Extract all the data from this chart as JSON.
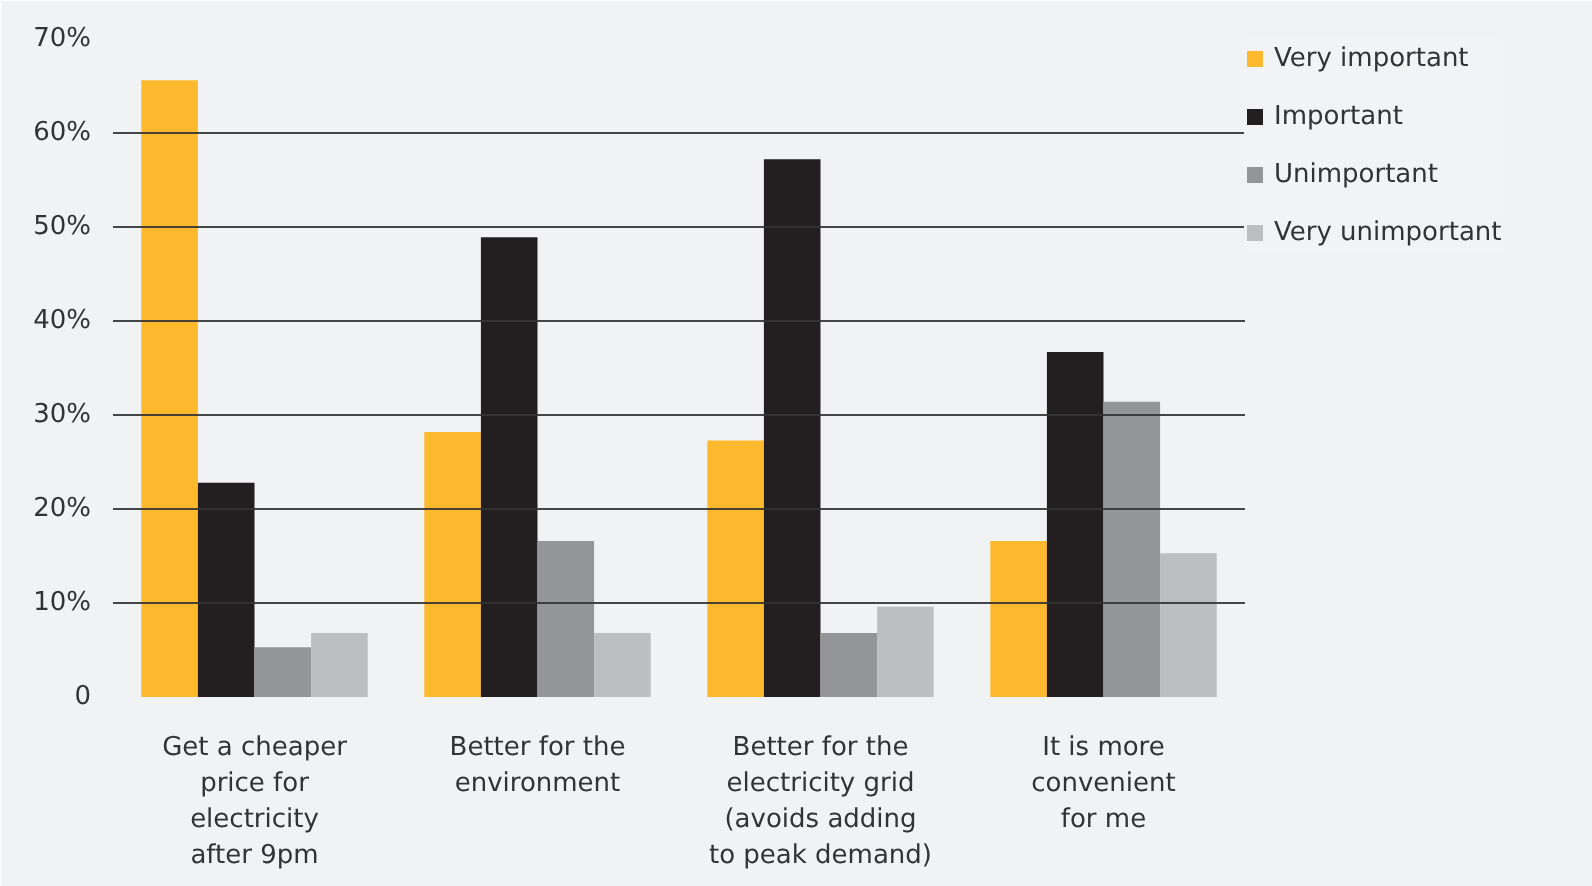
{
  "chart_data": {
    "type": "bar",
    "categories": [
      "Get a cheaper\nprice for\nelectricity\nafter 9pm",
      "Better for the\nenvironment",
      "Better for the\nelectricity grid\n(avoids adding\nto peak demand)",
      "It is more\nconvenient\nfor me"
    ],
    "series": [
      {
        "name": "Very important",
        "color": "#fdb92e",
        "values": [
          65.6,
          28.2,
          27.3,
          16.6
        ]
      },
      {
        "name": "Important",
        "color": "#231f20",
        "values": [
          22.8,
          48.9,
          57.2,
          36.7
        ]
      },
      {
        "name": "Unimportant",
        "color": "#939598",
        "values": [
          5.3,
          16.6,
          6.8,
          31.4
        ]
      },
      {
        "name": "Very unimportant",
        "color": "#bcbec0",
        "values": [
          6.8,
          6.8,
          9.6,
          15.3
        ]
      }
    ],
    "ylim": [
      0,
      70
    ],
    "yticks": [
      {
        "value": 0,
        "label": "0"
      },
      {
        "value": 10,
        "label": "10%"
      },
      {
        "value": 20,
        "label": "20%"
      },
      {
        "value": 30,
        "label": "30%"
      },
      {
        "value": 40,
        "label": "40%"
      },
      {
        "value": 50,
        "label": "50%"
      },
      {
        "value": 60,
        "label": "60%"
      },
      {
        "value": 70,
        "label": "70%"
      }
    ],
    "grid": "y",
    "legend": "top right"
  }
}
